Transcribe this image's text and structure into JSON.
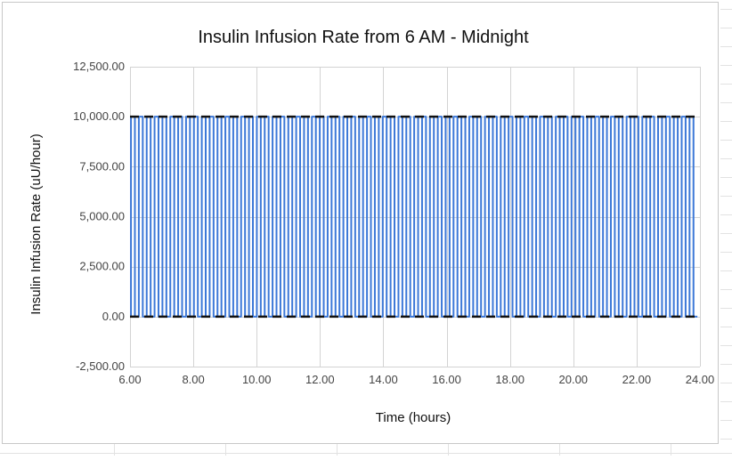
{
  "chart_data": {
    "type": "line",
    "title": "Insulin Infusion Rate from 6 AM - Midnight",
    "xlabel": "Time (hours)",
    "ylabel": "Insulin Infusion Rate (uU/hour)",
    "xlim": [
      6,
      24
    ],
    "ylim": [
      -2500,
      12500
    ],
    "x_ticks": [
      6,
      8,
      10,
      12,
      14,
      16,
      18,
      20,
      22,
      24
    ],
    "x_tick_labels": [
      "6.00",
      "8.00",
      "10.00",
      "12.00",
      "14.00",
      "16.00",
      "18.00",
      "20.00",
      "22.00",
      "24.00"
    ],
    "y_ticks": [
      -2500,
      0,
      2500,
      5000,
      7500,
      10000,
      12500
    ],
    "y_tick_labels": [
      "-2,500.00",
      "0.00",
      "2,500.00",
      "5,000.00",
      "7,500.00",
      "10,000.00",
      "12,500.00"
    ],
    "grid": true,
    "legend": "none",
    "series": [
      {
        "color": "#3c78d8",
        "style": "solid",
        "waveform": "square-pulse",
        "low": 0,
        "high": 10000,
        "x_start": 6.03,
        "x_end": 23.92,
        "pulses": 72
      }
    ],
    "reference_lines": [
      {
        "y": 0,
        "color": "#111111",
        "style": "dashed"
      },
      {
        "y": 10000,
        "color": "#111111",
        "style": "dashed"
      }
    ]
  }
}
